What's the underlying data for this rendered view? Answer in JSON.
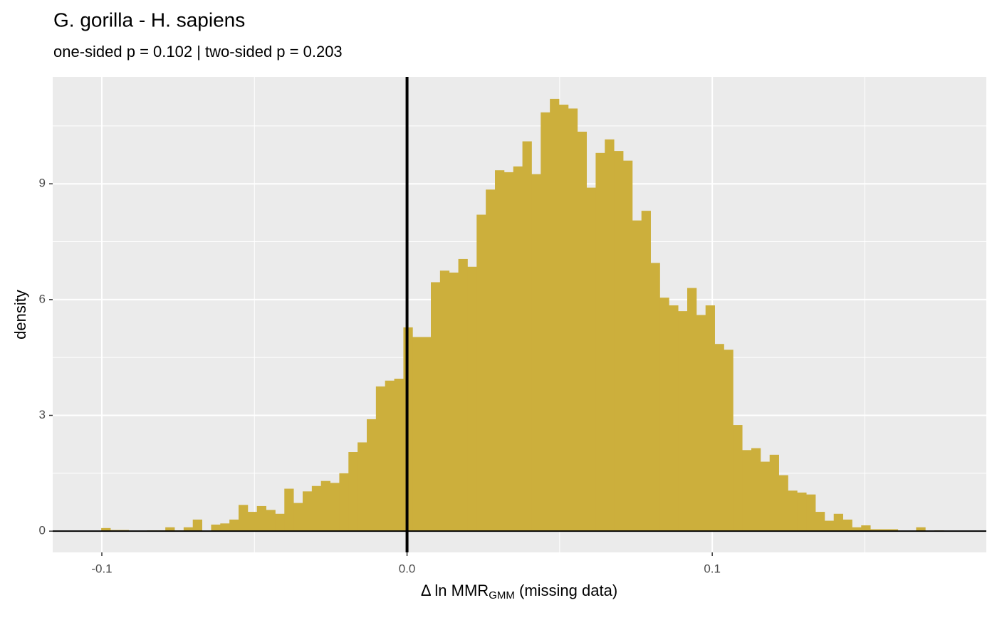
{
  "chart_data": {
    "type": "histogram",
    "title": "G. gorilla - H. sapiens",
    "subtitle": "one-sided p = 0.102 | two-sided p = 0.203",
    "x_label": {
      "text": "Δ ln MMR",
      "subscript": "GMM",
      "suffix": " (missing data)"
    },
    "y_label": "density",
    "color": "#CCAF3C",
    "grid": true,
    "xlim": [
      -0.1161,
      0.1898
    ],
    "ylim": [
      -0.55,
      11.77
    ],
    "xticks": [
      -0.1,
      {
        "value": 0,
        "label": "0.0"
      },
      0.1
    ],
    "yticks": [
      0,
      3,
      6,
      9
    ],
    "reference_lines": {
      "x": 0,
      "y": 0
    },
    "bins": [
      -0.1002,
      -0.0972,
      -0.0942,
      -0.0912,
      -0.0882,
      -0.0852,
      -0.0822,
      -0.0792,
      -0.0762,
      -0.0732,
      -0.0702,
      -0.0672,
      -0.0642,
      -0.0612,
      -0.0582,
      -0.0552,
      -0.0522,
      -0.0492,
      -0.0462,
      -0.0432,
      -0.0402,
      -0.0372,
      -0.0342,
      -0.0312,
      -0.0282,
      -0.0252,
      -0.0222,
      -0.0192,
      -0.0162,
      -0.0132,
      -0.0102,
      -0.0072,
      -0.0042,
      -0.0012,
      0.0018,
      0.0048,
      0.0078,
      0.0108,
      0.0138,
      0.0168,
      0.0198,
      0.0228,
      0.0258,
      0.0288,
      0.0318,
      0.0348,
      0.0378,
      0.0408,
      0.0438,
      0.0468,
      0.0498,
      0.0528,
      0.0558,
      0.0588,
      0.0618,
      0.0648,
      0.0678,
      0.0708,
      0.0738,
      0.0768,
      0.0798,
      0.0828,
      0.0858,
      0.0888,
      0.0918,
      0.0948,
      0.0978,
      0.1008,
      0.1038,
      0.1068,
      0.1098,
      0.1128,
      0.1158,
      0.1188,
      0.1218,
      0.1248,
      0.1278,
      0.1308,
      0.1338,
      0.1368,
      0.1398,
      0.1428,
      0.1458,
      0.1488,
      0.1518,
      0.1548,
      0.1578,
      0.1608,
      0.1638,
      0.1668,
      0.1698,
      0.1728,
      0.1758,
      0.1788
    ],
    "values": [
      0.08,
      0.03,
      0.03,
      0,
      0,
      0.02,
      0.02,
      0.1,
      0.02,
      0.1,
      0.3,
      0,
      0.17,
      0.2,
      0.3,
      0.68,
      0.5,
      0.65,
      0.55,
      0.45,
      1.1,
      0.73,
      1.03,
      1.17,
      1.3,
      1.25,
      1.5,
      2.05,
      2.3,
      2.9,
      3.75,
      3.9,
      3.95,
      5.28,
      5.03,
      5.03,
      6.45,
      6.75,
      6.7,
      7.05,
      6.85,
      8.2,
      8.85,
      9.35,
      9.3,
      9.45,
      10.1,
      9.25,
      10.85,
      11.2,
      11.05,
      10.95,
      10.35,
      8.9,
      9.8,
      10.15,
      9.85,
      9.6,
      8.05,
      8.3,
      6.95,
      6.05,
      5.85,
      5.7,
      6.3,
      5.6,
      5.85,
      4.85,
      4.7,
      2.75,
      2.1,
      2.15,
      1.8,
      1.98,
      1.45,
      1.05,
      1.0,
      0.95,
      0.5,
      0.27,
      0.45,
      0.3,
      0.1,
      0.15,
      0.05,
      0.05,
      0.05,
      0,
      0,
      0.1,
      0,
      0.02,
      0
    ]
  }
}
